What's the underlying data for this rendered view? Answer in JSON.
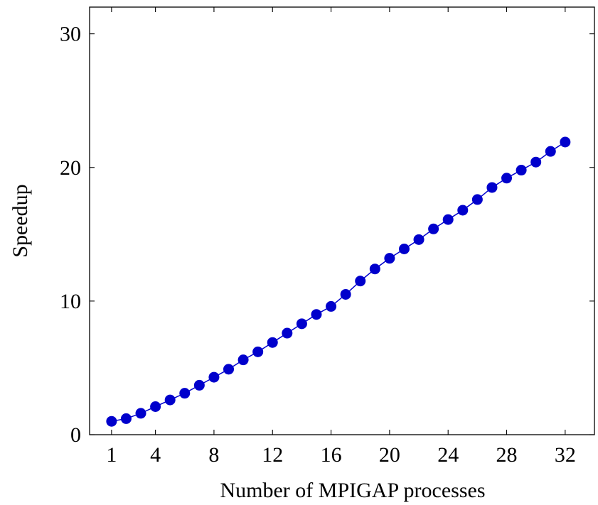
{
  "chart_data": {
    "type": "line",
    "xlabel": "Number of MPIGAP processes",
    "ylabel": "Speedup",
    "xlim": [
      -0.5,
      34
    ],
    "ylim": [
      0,
      32
    ],
    "x_ticks": [
      1,
      4,
      8,
      12,
      16,
      20,
      24,
      28,
      32
    ],
    "y_ticks": [
      0,
      10,
      20,
      30
    ],
    "grid": false,
    "marker_color": "#0000cc",
    "series": [
      {
        "x": [
          1,
          2,
          3,
          4,
          5,
          6,
          7,
          8,
          9,
          10,
          11,
          12,
          13,
          14,
          15,
          16,
          17,
          18,
          19,
          20,
          21,
          22,
          23,
          24,
          25,
          26,
          27,
          28,
          29,
          30,
          31,
          32
        ],
        "values": [
          1.0,
          1.2,
          1.6,
          2.1,
          2.6,
          3.1,
          3.7,
          4.3,
          4.9,
          5.6,
          6.2,
          6.9,
          7.6,
          8.3,
          9.0,
          9.6,
          10.5,
          11.5,
          12.4,
          13.2,
          13.9,
          14.6,
          15.4,
          16.1,
          16.8,
          17.6,
          18.5,
          19.2,
          19.8,
          20.4,
          21.2,
          21.9
        ]
      }
    ]
  }
}
